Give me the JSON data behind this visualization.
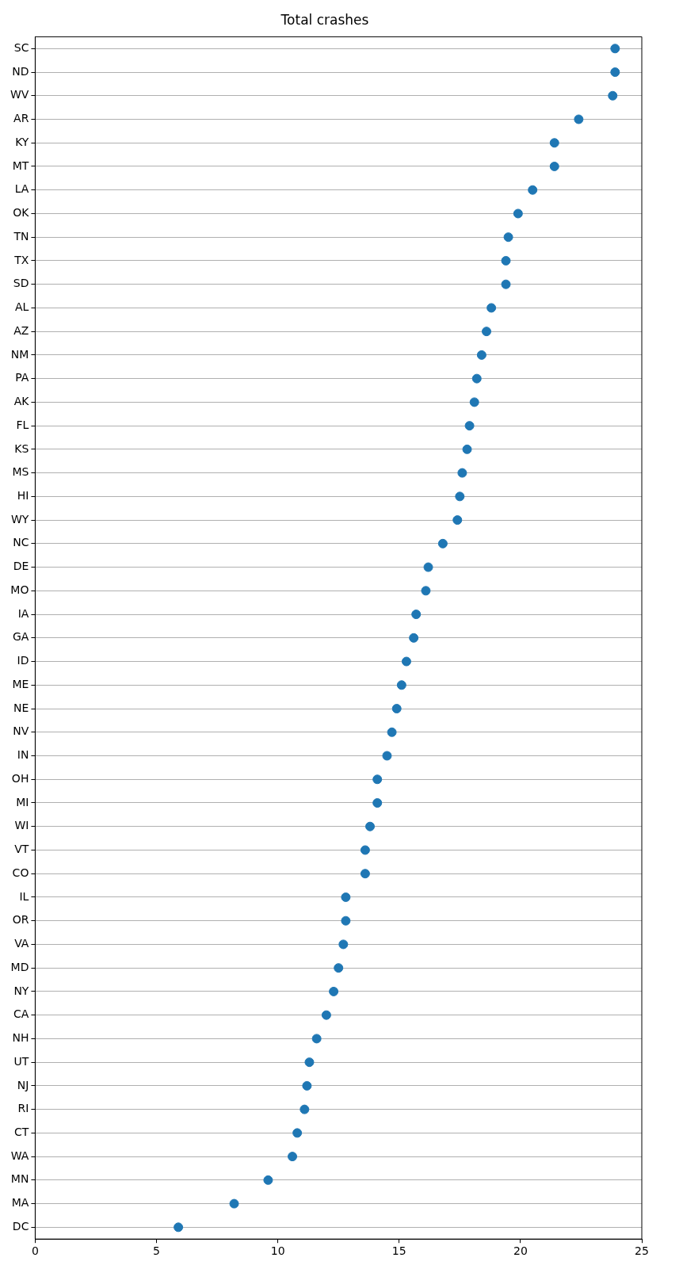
{
  "chart_data": {
    "type": "scatter",
    "title": "Total crashes",
    "orientation": "horizontal",
    "categories": [
      "SC",
      "ND",
      "WV",
      "AR",
      "KY",
      "MT",
      "LA",
      "OK",
      "TN",
      "TX",
      "SD",
      "AL",
      "AZ",
      "NM",
      "PA",
      "AK",
      "FL",
      "KS",
      "MS",
      "HI",
      "WY",
      "NC",
      "DE",
      "MO",
      "IA",
      "GA",
      "ID",
      "ME",
      "NE",
      "NV",
      "IN",
      "OH",
      "MI",
      "WI",
      "VT",
      "CO",
      "IL",
      "OR",
      "VA",
      "MD",
      "NY",
      "CA",
      "NH",
      "UT",
      "NJ",
      "RI",
      "CT",
      "WA",
      "MN",
      "MA",
      "DC"
    ],
    "values": [
      23.9,
      23.9,
      23.8,
      22.4,
      21.4,
      21.4,
      20.5,
      19.9,
      19.5,
      19.4,
      19.4,
      18.8,
      18.6,
      18.4,
      18.2,
      18.1,
      17.9,
      17.8,
      17.6,
      17.5,
      17.4,
      16.8,
      16.2,
      16.1,
      15.7,
      15.6,
      15.3,
      15.1,
      14.9,
      14.7,
      14.5,
      14.1,
      14.1,
      13.8,
      13.6,
      13.6,
      12.8,
      12.8,
      12.7,
      12.5,
      12.3,
      12.0,
      11.6,
      11.3,
      11.2,
      11.1,
      10.8,
      10.6,
      9.6,
      8.2,
      5.9
    ],
    "color": "#1f77b4",
    "marker": "circle",
    "xlim": [
      0,
      25
    ],
    "xticks": [
      0,
      5,
      10,
      15,
      20,
      25
    ],
    "grid": "y"
  }
}
